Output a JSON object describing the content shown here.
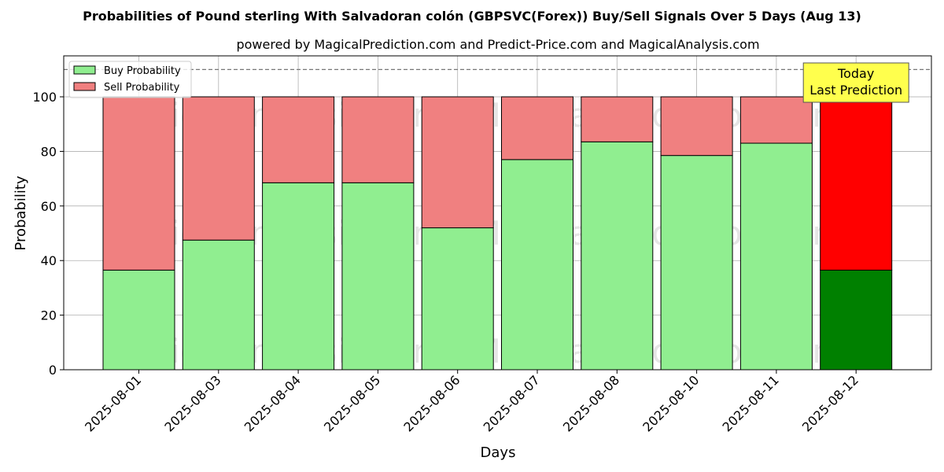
{
  "chart_data": {
    "type": "bar",
    "stacked": true,
    "title": "Probabilities of Pound sterling With Salvadoran colón (GBPSVC(Forex)) Buy/Sell Signals Over 5 Days (Aug 13)",
    "subtitle": "powered by MagicalPrediction.com and Predict-Price.com and MagicalAnalysis.com",
    "xlabel": "Days",
    "ylabel": "Probability",
    "ylim": [
      0,
      115
    ],
    "yticks": [
      0,
      20,
      40,
      60,
      80,
      100
    ],
    "grid": true,
    "legend_position": "top-left",
    "reference_line": 110,
    "categories": [
      "2025-08-01",
      "2025-08-03",
      "2025-08-04",
      "2025-08-05",
      "2025-08-06",
      "2025-08-07",
      "2025-08-08",
      "2025-08-10",
      "2025-08-11",
      "2025-08-12"
    ],
    "series": [
      {
        "name": "Buy Probability",
        "color": "#90ee90",
        "values": [
          36.5,
          47.5,
          68.5,
          68.5,
          52.0,
          77.0,
          83.5,
          78.5,
          83.0,
          36.5
        ]
      },
      {
        "name": "Sell Probability",
        "color": "#f08080",
        "values": [
          63.5,
          52.5,
          31.5,
          31.5,
          48.0,
          23.0,
          16.5,
          21.5,
          17.0,
          63.5
        ]
      }
    ],
    "highlight": {
      "index": 9,
      "buy_color": "#008000",
      "sell_color": "#ff0000",
      "annotation": [
        "Today",
        "Last Prediction"
      ],
      "annotation_bg": "#ffff4d"
    },
    "watermarks": [
      "MagicalAnalysis.com",
      "MagicalPrediction.com"
    ]
  }
}
